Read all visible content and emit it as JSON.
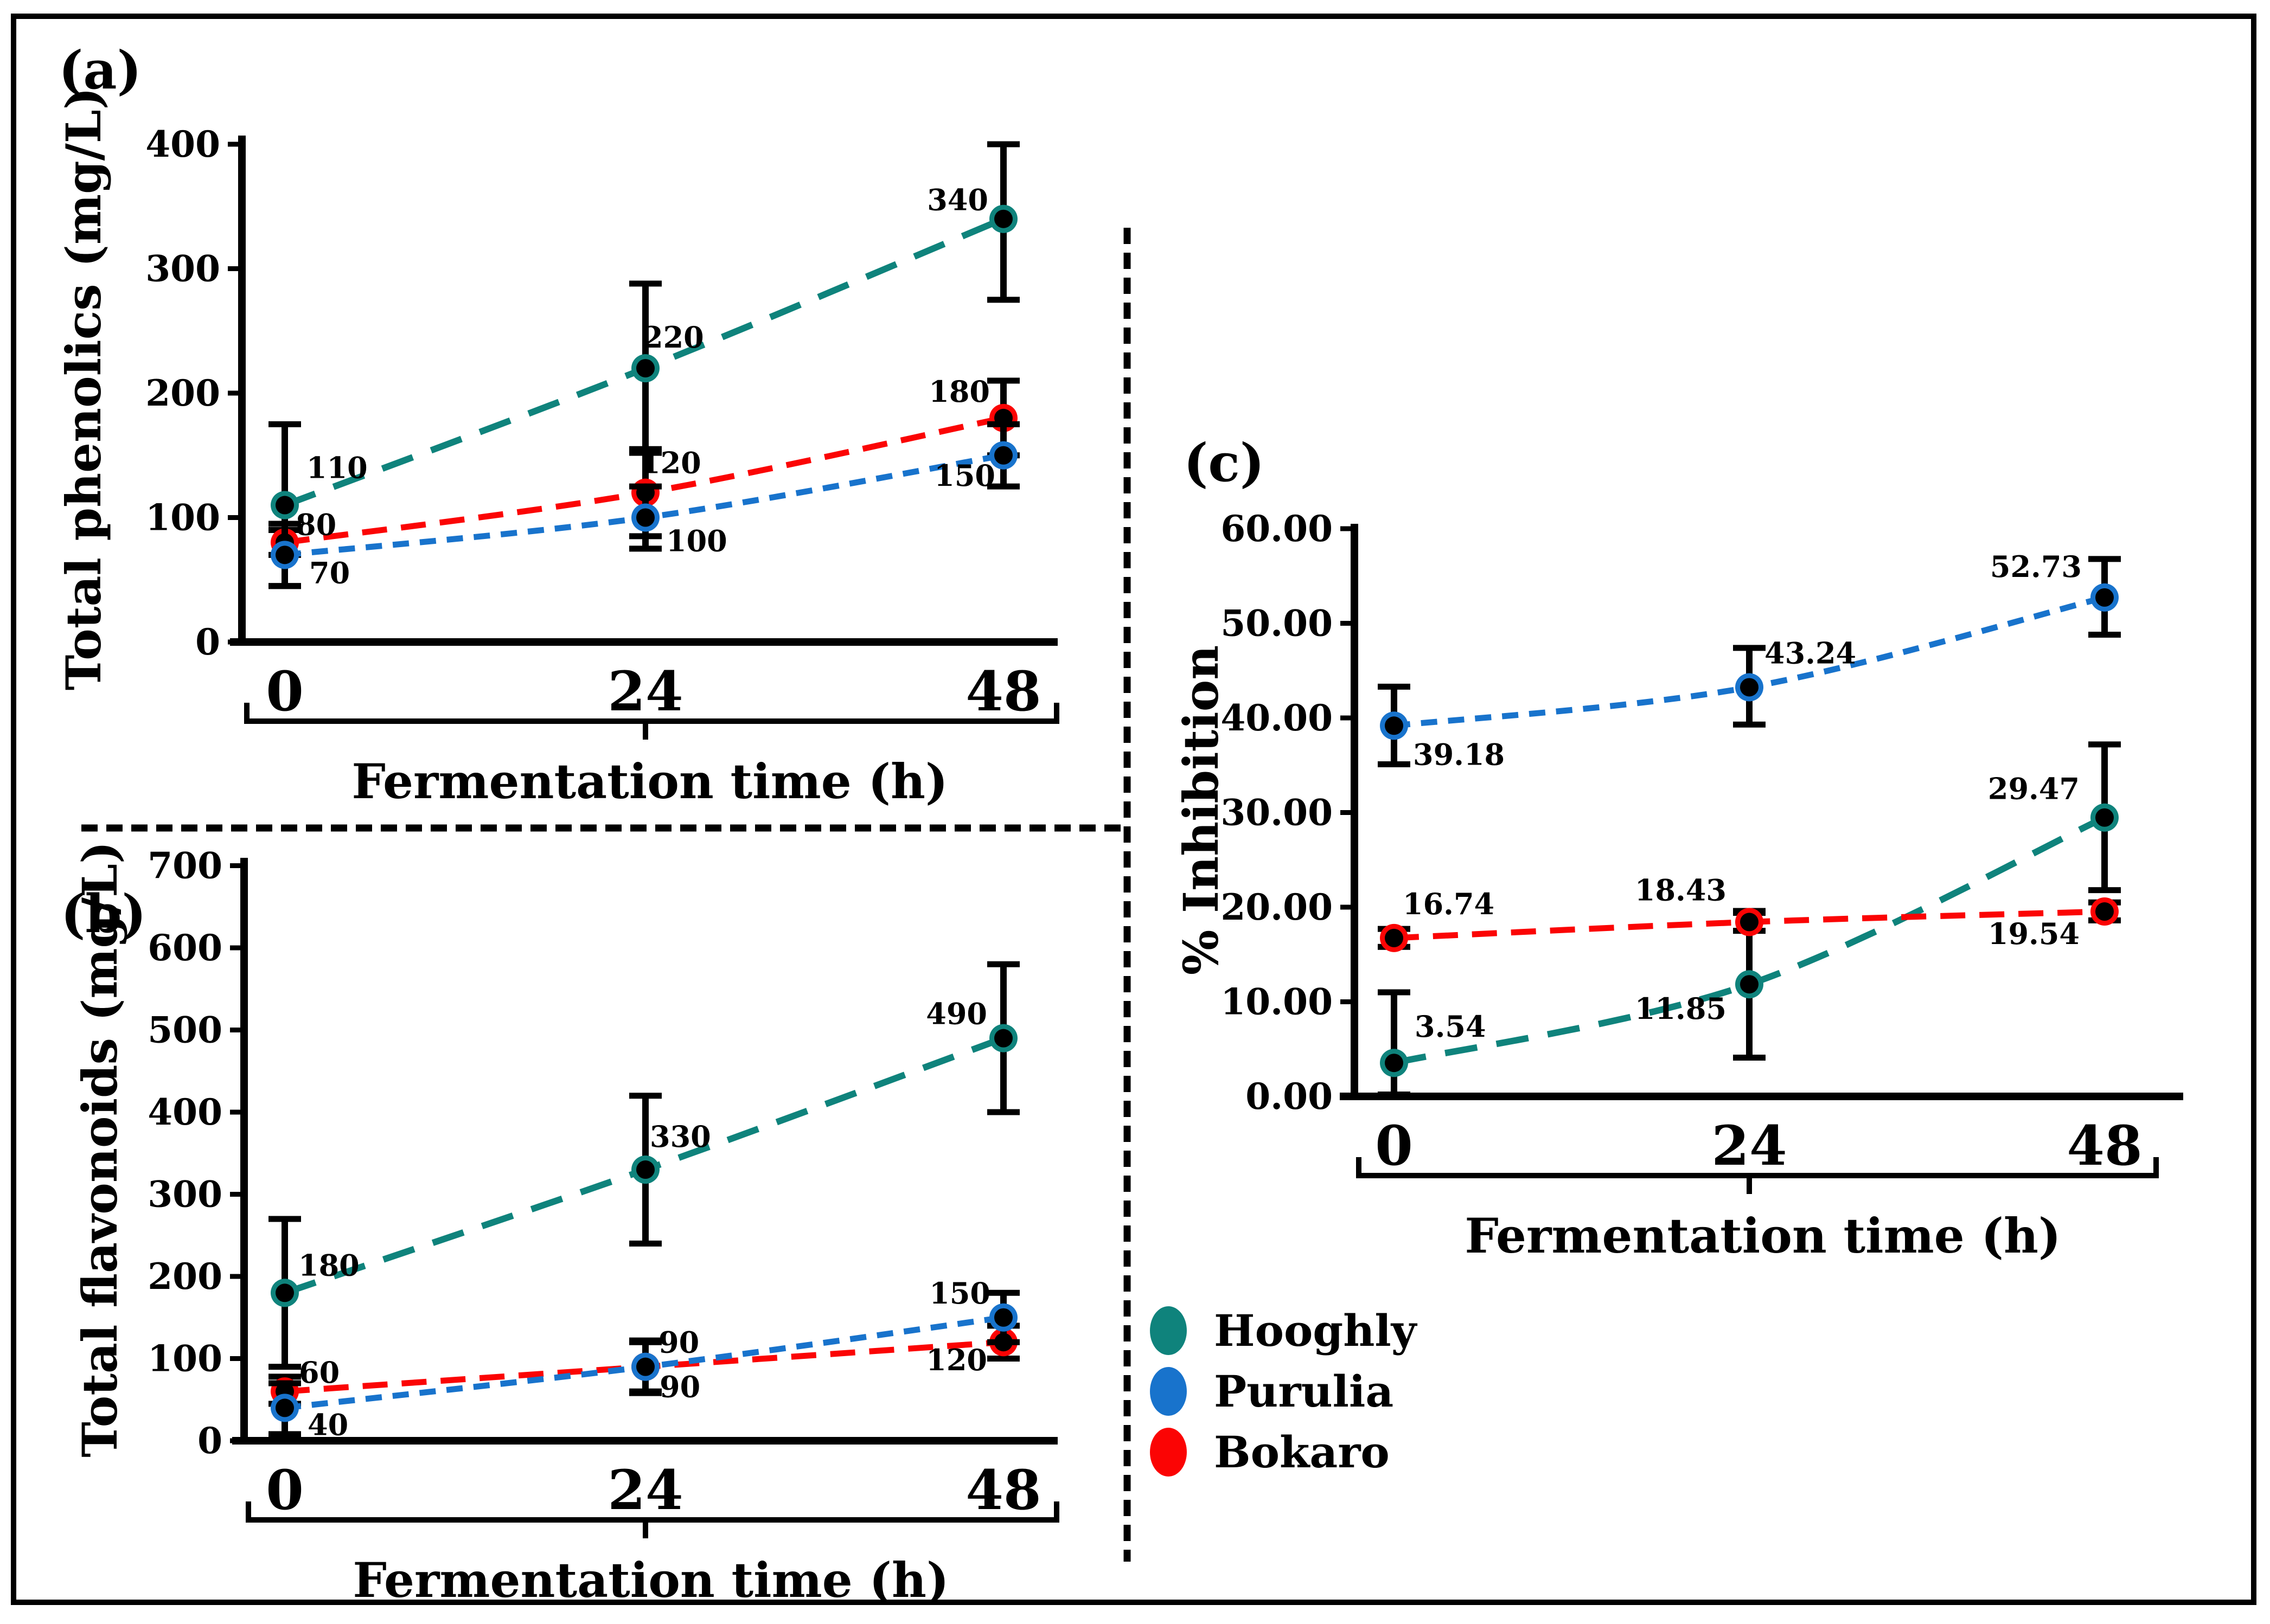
{
  "figure": {
    "background": "#ffffff",
    "border_color": "#000000",
    "text_color": "#000000"
  },
  "panels": [
    {
      "letter": "(a)"
    },
    {
      "letter": "(b)"
    },
    {
      "letter": "(c)"
    }
  ],
  "legend": {
    "items": [
      {
        "label": "Hooghly",
        "color": "#0f837c"
      },
      {
        "label": "Purulia",
        "color": "#1873cc"
      },
      {
        "label": "Bokaro",
        "color": "#fb0404"
      }
    ]
  },
  "chart_data": [
    {
      "type": "line",
      "panel": "a",
      "xlabel": "Fermentation time (h)",
      "ylabel": "Total phenolics (mg/L)",
      "x": [
        0,
        24,
        48
      ],
      "x_tick_labels": [
        "0",
        "24",
        "48"
      ],
      "ylim": [
        0,
        400
      ],
      "y_ticks": [
        0,
        100,
        200,
        300,
        400
      ],
      "y_tick_labels": [
        "0",
        "100",
        "200",
        "300",
        "400"
      ],
      "grid": false,
      "legend_position": "none",
      "series": [
        {
          "name": "Hooghly",
          "color": "#0f837c",
          "dash": "long",
          "values": [
            110,
            220,
            340
          ],
          "labels": [
            "110",
            "220",
            "340"
          ],
          "error_lo": [
            45,
            152,
            275
          ],
          "error_hi": [
            175,
            288,
            400
          ]
        },
        {
          "name": "Bokaro",
          "color": "#fb0404",
          "dash": "medium",
          "values": [
            80,
            120,
            180
          ],
          "labels": [
            "80",
            "120",
            "180"
          ],
          "error_lo": [
            70,
            85,
            150
          ],
          "error_hi": [
            90,
            155,
            210
          ]
        },
        {
          "name": "Purulia",
          "color": "#1873cc",
          "dash": "short",
          "values": [
            70,
            100,
            150
          ],
          "labels": [
            "70",
            "100",
            "150"
          ],
          "error_lo": [
            45,
            75,
            125
          ],
          "error_hi": [
            95,
            125,
            175
          ]
        }
      ]
    },
    {
      "type": "line",
      "panel": "b",
      "xlabel": "Fermentation time (h)",
      "ylabel": "Total flavonoids (mg/L)",
      "x": [
        0,
        24,
        48
      ],
      "x_tick_labels": [
        "0",
        "24",
        "48"
      ],
      "ylim": [
        0,
        700
      ],
      "y_ticks": [
        0,
        100,
        200,
        300,
        400,
        500,
        600,
        700
      ],
      "y_tick_labels": [
        "0",
        "100",
        "200",
        "300",
        "400",
        "500",
        "600",
        "700"
      ],
      "grid": false,
      "legend_position": "none",
      "series": [
        {
          "name": "Hooghly",
          "color": "#0f837c",
          "dash": "long",
          "values": [
            180,
            330,
            490
          ],
          "labels": [
            "180",
            "330",
            "490"
          ],
          "error_lo": [
            90,
            240,
            400
          ],
          "error_hi": [
            270,
            420,
            580
          ]
        },
        {
          "name": "Bokaro",
          "color": "#fb0404",
          "dash": "medium",
          "values": [
            60,
            90,
            120
          ],
          "labels": [
            "60",
            "90",
            "120"
          ],
          "error_lo": [
            45,
            60,
            100
          ],
          "error_hi": [
            78,
            120,
            140
          ]
        },
        {
          "name": "Purulia",
          "color": "#1873cc",
          "dash": "short",
          "values": [
            40,
            90,
            150
          ],
          "labels": [
            "40",
            "90",
            "150"
          ],
          "error_lo": [
            8,
            58,
            120
          ],
          "error_hi": [
            70,
            122,
            180
          ]
        }
      ]
    },
    {
      "type": "line",
      "panel": "c",
      "xlabel": "Fermentation time (h)",
      "ylabel": "% Inhibition",
      "x": [
        0,
        24,
        48
      ],
      "x_tick_labels": [
        "0",
        "24",
        "48"
      ],
      "ylim": [
        0,
        60
      ],
      "y_ticks": [
        0,
        10,
        20,
        30,
        40,
        50,
        60
      ],
      "y_tick_labels": [
        "0.00",
        "10.00",
        "20.00",
        "30.00",
        "40.00",
        "50.00",
        "60.00"
      ],
      "grid": false,
      "legend_position": "none",
      "series": [
        {
          "name": "Hooghly",
          "color": "#0f837c",
          "dash": "long",
          "values": [
            3.54,
            11.85,
            29.47
          ],
          "labels": [
            "3.54",
            "11.85",
            "29.47"
          ],
          "error_lo": [
            0.2,
            4.1,
            21.8
          ],
          "error_hi": [
            11.0,
            19.6,
            37.2
          ]
        },
        {
          "name": "Bokaro",
          "color": "#fb0404",
          "dash": "medium",
          "values": [
            16.74,
            18.43,
            19.54
          ],
          "labels": [
            "16.74",
            "18.43",
            "19.54"
          ],
          "error_lo": [
            15.8,
            17.5,
            18.6
          ],
          "error_hi": [
            17.7,
            19.4,
            20.5
          ]
        },
        {
          "name": "Purulia",
          "color": "#1873cc",
          "dash": "short",
          "values": [
            39.18,
            43.24,
            52.73
          ],
          "labels": [
            "39.18",
            "43.24",
            "52.73"
          ],
          "error_lo": [
            35.1,
            39.3,
            48.8
          ],
          "error_hi": [
            43.3,
            47.4,
            56.8
          ]
        }
      ]
    }
  ]
}
